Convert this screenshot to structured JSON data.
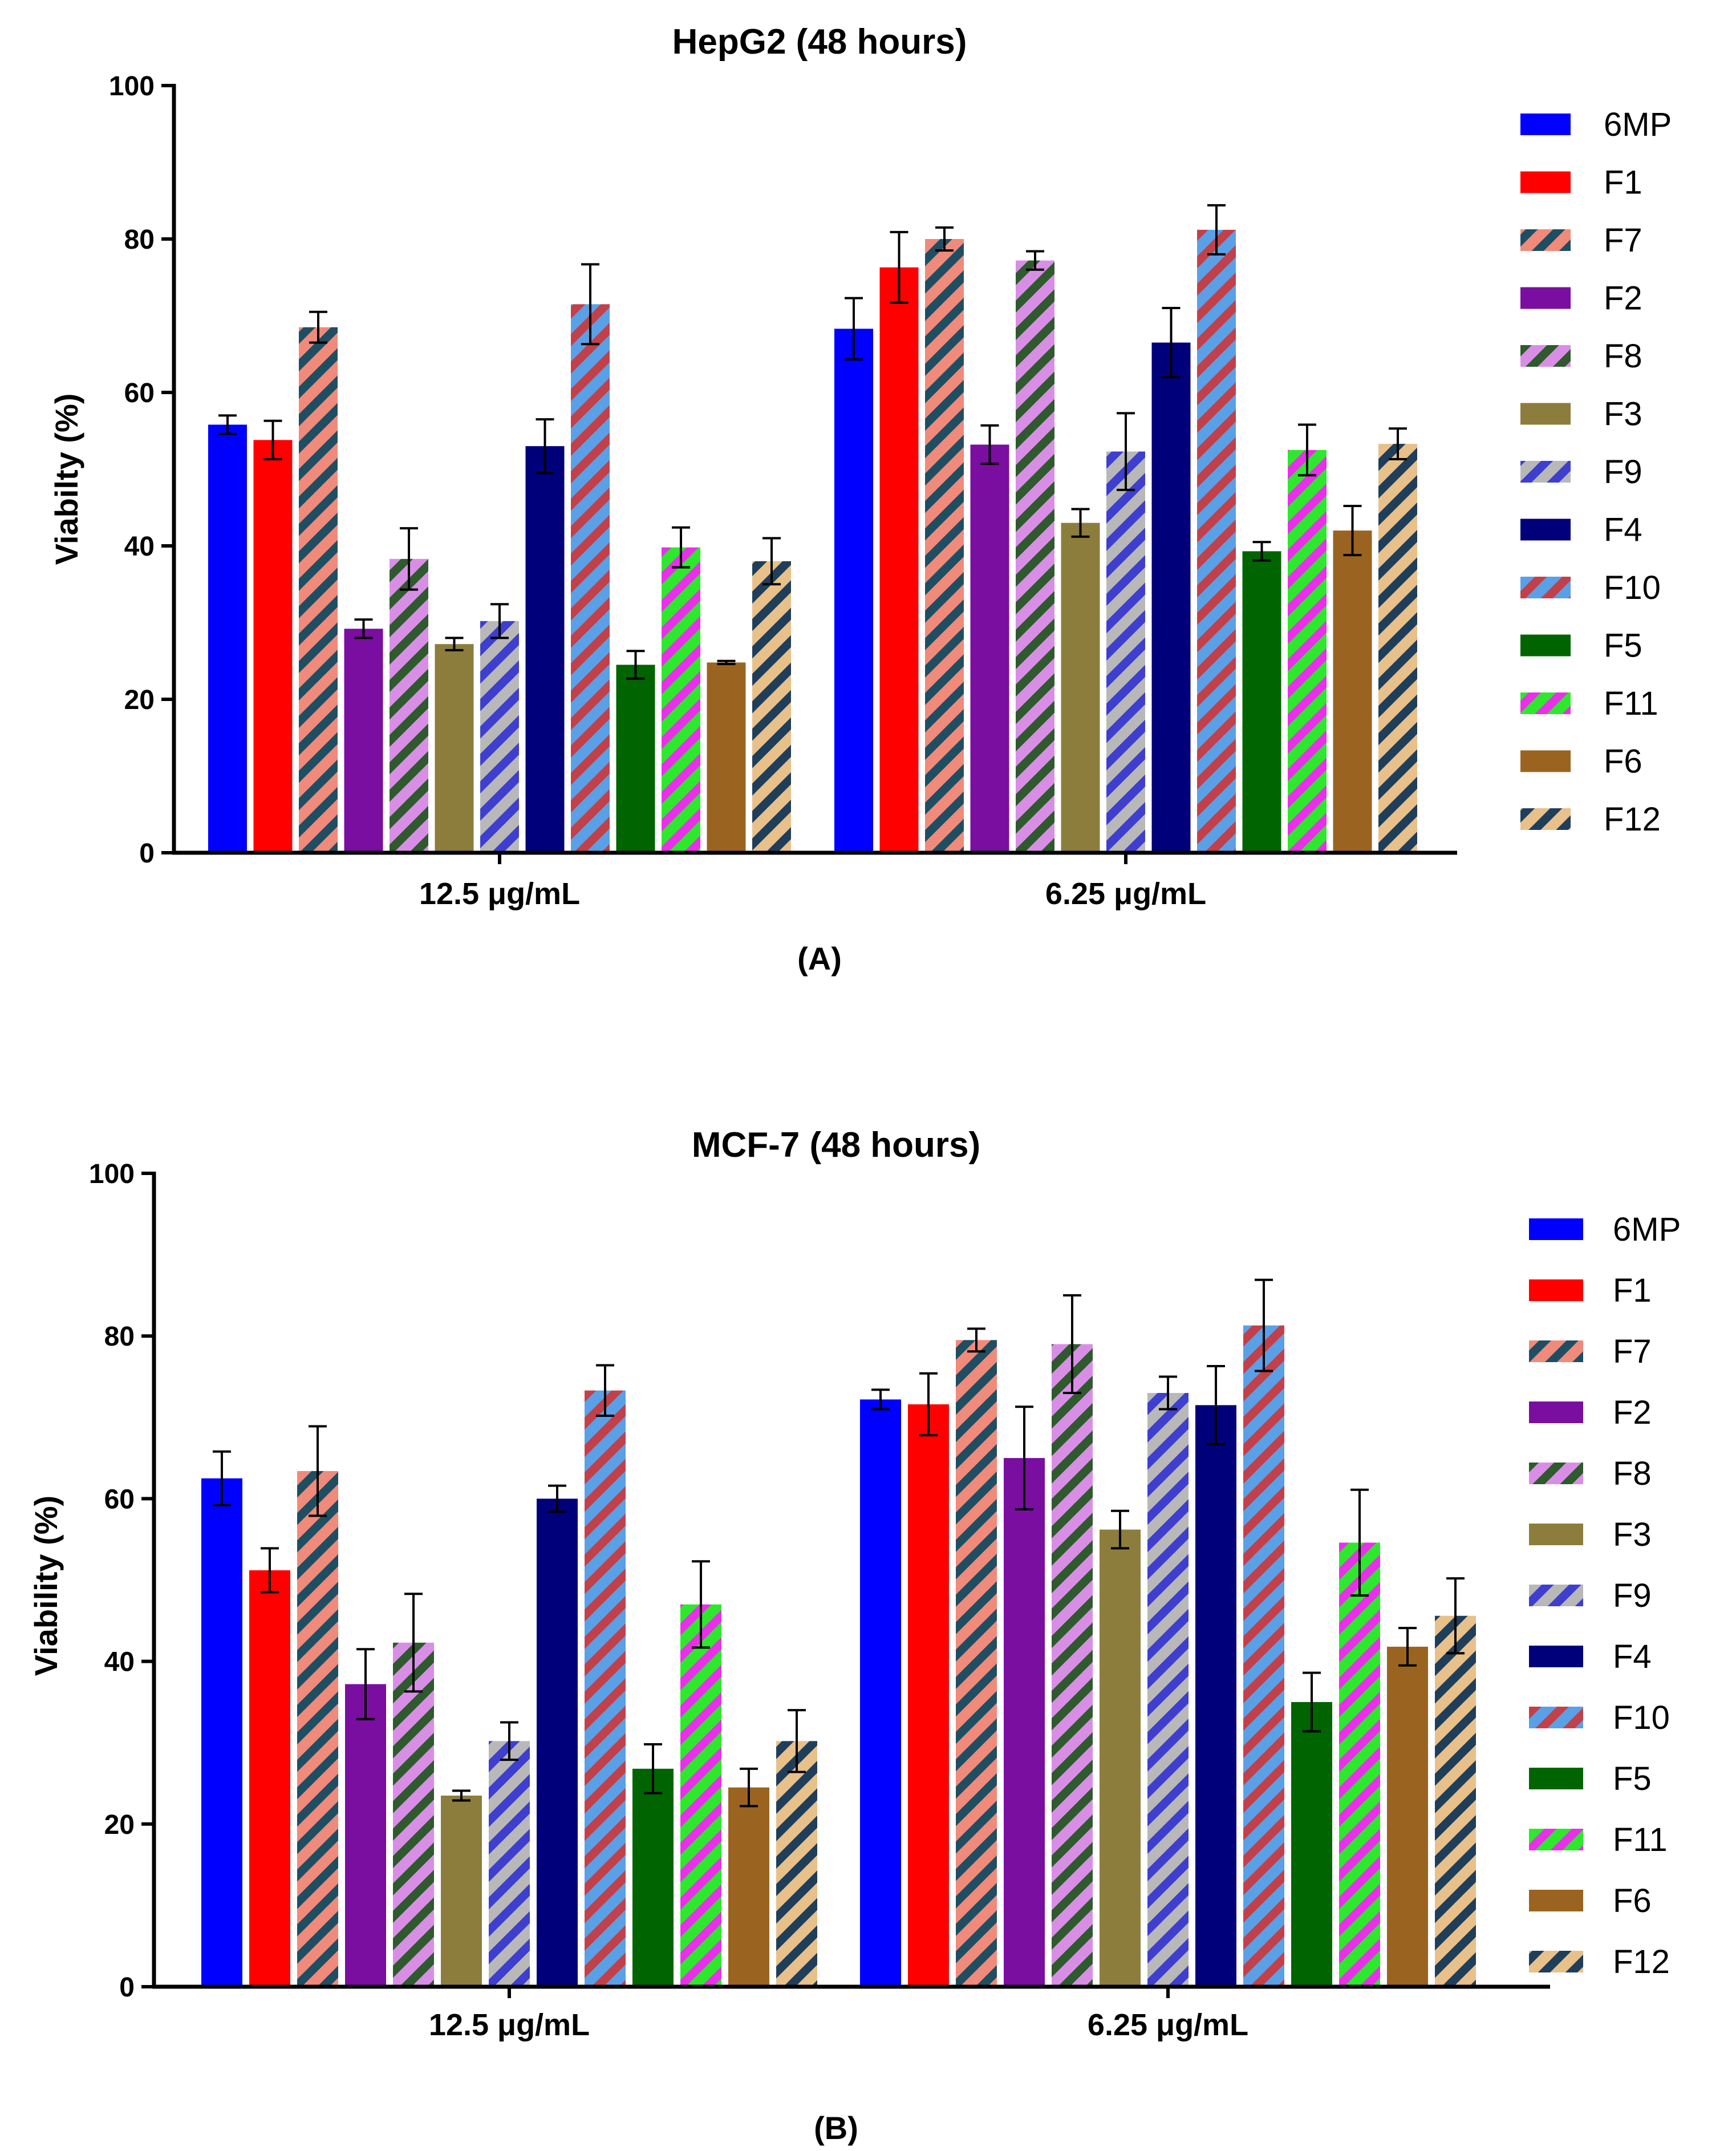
{
  "series_styles": [
    {
      "name": "6MP",
      "color": "#0000ff",
      "stripe": null
    },
    {
      "name": "F1",
      "color": "#ff0000",
      "stripe": null
    },
    {
      "name": "F7",
      "color": "#f08a7a",
      "stripe": "#1f4e63"
    },
    {
      "name": "F2",
      "color": "#7a0ea0",
      "stripe": null
    },
    {
      "name": "F8",
      "color": "#d98ee6",
      "stripe": "#2e5a2e"
    },
    {
      "name": "F3",
      "color": "#8c7d3d",
      "stripe": null
    },
    {
      "name": "F9",
      "color": "#b8b8b8",
      "stripe": "#3e3ecf"
    },
    {
      "name": "F4",
      "color": "#00007a",
      "stripe": null
    },
    {
      "name": "F10",
      "color": "#5aa0e6",
      "stripe": "#c2404a"
    },
    {
      "name": "F5",
      "color": "#006400",
      "stripe": null
    },
    {
      "name": "F11",
      "color": "#2ee82e",
      "stripe": "#e830e8"
    },
    {
      "name": "F6",
      "color": "#9a6420",
      "stripe": null
    },
    {
      "name": "F12",
      "color": "#e8c08a",
      "stripe": "#1f3e5a"
    }
  ],
  "chart_data": [
    {
      "type": "bar",
      "title": "HepG2 (48 hours)",
      "panel_label": "(A)",
      "ylabel": "Viabilty (%)",
      "xlabel": "",
      "ylim": [
        0,
        100
      ],
      "yticks": [
        "0",
        "20",
        "40",
        "60",
        "80",
        "100"
      ],
      "categories": [
        "12.5 μg/mL",
        "6.25 μg/mL"
      ],
      "legend_position": "right",
      "series": [
        {
          "name": "6MP",
          "values": [
            55.8,
            68.3
          ],
          "errors": [
            1.2,
            4.0
          ]
        },
        {
          "name": "F1",
          "values": [
            53.8,
            76.3
          ],
          "errors": [
            2.5,
            4.6
          ]
        },
        {
          "name": "F7",
          "values": [
            68.5,
            80.0
          ],
          "errors": [
            2.0,
            1.5
          ]
        },
        {
          "name": "F2",
          "values": [
            29.2,
            53.2
          ],
          "errors": [
            1.2,
            2.5
          ]
        },
        {
          "name": "F8",
          "values": [
            38.3,
            77.2
          ],
          "errors": [
            4.0,
            1.2
          ]
        },
        {
          "name": "F3",
          "values": [
            27.2,
            43.0
          ],
          "errors": [
            0.8,
            1.8
          ]
        },
        {
          "name": "F9",
          "values": [
            30.2,
            52.3
          ],
          "errors": [
            2.2,
            5.0
          ]
        },
        {
          "name": "F4",
          "values": [
            53.0,
            66.5
          ],
          "errors": [
            3.5,
            4.5
          ]
        },
        {
          "name": "F10",
          "values": [
            71.5,
            81.2
          ],
          "errors": [
            5.2,
            3.2
          ]
        },
        {
          "name": "F5",
          "values": [
            24.5,
            39.3
          ],
          "errors": [
            1.8,
            1.2
          ]
        },
        {
          "name": "F11",
          "values": [
            39.8,
            52.5
          ],
          "errors": [
            2.6,
            3.3
          ]
        },
        {
          "name": "F6",
          "values": [
            24.8,
            42.0
          ],
          "errors": [
            0.2,
            3.2
          ]
        },
        {
          "name": "F12",
          "values": [
            38.0,
            53.3
          ],
          "errors": [
            3.0,
            2.0
          ]
        }
      ]
    },
    {
      "type": "bar",
      "title": "MCF-7 (48 hours)",
      "panel_label": "(B)",
      "ylabel": "Viability (%)",
      "xlabel": "",
      "ylim": [
        0,
        100
      ],
      "yticks": [
        "0",
        "20",
        "40",
        "60",
        "80",
        "100"
      ],
      "categories": [
        "12.5 μg/mL",
        "6.25 μg/mL"
      ],
      "legend_position": "right",
      "series": [
        {
          "name": "6MP",
          "values": [
            62.5,
            72.2
          ],
          "errors": [
            3.3,
            1.2
          ]
        },
        {
          "name": "F1",
          "values": [
            51.2,
            71.6
          ],
          "errors": [
            2.7,
            3.8
          ]
        },
        {
          "name": "F7",
          "values": [
            63.4,
            79.5
          ],
          "errors": [
            5.5,
            1.4
          ]
        },
        {
          "name": "F2",
          "values": [
            37.2,
            65.0
          ],
          "errors": [
            4.3,
            6.3
          ]
        },
        {
          "name": "F8",
          "values": [
            42.3,
            79.0
          ],
          "errors": [
            6.0,
            6.0
          ]
        },
        {
          "name": "F3",
          "values": [
            23.5,
            56.2
          ],
          "errors": [
            0.6,
            2.3
          ]
        },
        {
          "name": "F9",
          "values": [
            30.2,
            73.0
          ],
          "errors": [
            2.3,
            2.0
          ]
        },
        {
          "name": "F4",
          "values": [
            60.0,
            71.5
          ],
          "errors": [
            1.6,
            4.8
          ]
        },
        {
          "name": "F10",
          "values": [
            73.3,
            81.3
          ],
          "errors": [
            3.1,
            5.6
          ]
        },
        {
          "name": "F5",
          "values": [
            26.8,
            35.0
          ],
          "errors": [
            3.0,
            3.6
          ]
        },
        {
          "name": "F11",
          "values": [
            47.0,
            54.6
          ],
          "errors": [
            5.3,
            6.5
          ]
        },
        {
          "name": "F6",
          "values": [
            24.5,
            41.8
          ],
          "errors": [
            2.3,
            2.3
          ]
        },
        {
          "name": "F12",
          "values": [
            30.2,
            45.6
          ],
          "errors": [
            3.8,
            4.6
          ]
        }
      ]
    }
  ]
}
